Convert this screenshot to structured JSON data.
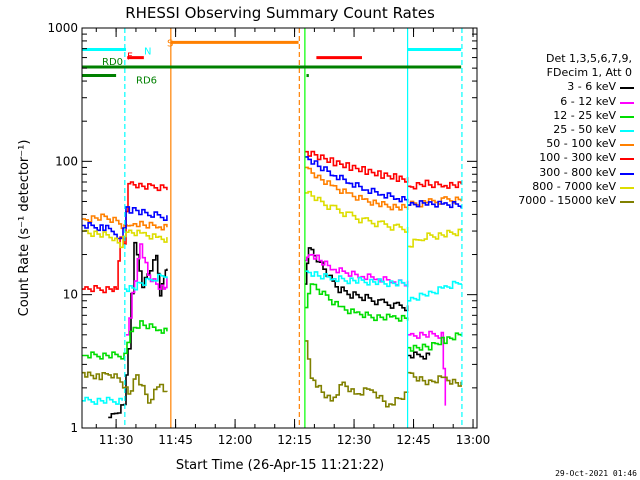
{
  "chart_data": {
    "type": "line",
    "title": "RHESSI Observing Summary Count Rates",
    "xlabel": "Start Time (26-Apr-15 11:21:22)",
    "ylabel": "Count Rate (s⁻¹ detector⁻¹)",
    "yscale": "log",
    "ylim": [
      1,
      1000
    ],
    "xlim_minutes": [
      21.4,
      121.0
    ],
    "xticks": [
      {
        "t": 30,
        "label": "11:30"
      },
      {
        "t": 45,
        "label": "11:45"
      },
      {
        "t": 60,
        "label": "12:00"
      },
      {
        "t": 75,
        "label": "12:15"
      },
      {
        "t": 90,
        "label": "12:30"
      },
      {
        "t": 105,
        "label": "12:45"
      },
      {
        "t": 120,
        "label": "13:00"
      }
    ],
    "yticks": [
      {
        "v": 1,
        "label": "1"
      },
      {
        "v": 10,
        "label": "10"
      },
      {
        "v": 100,
        "label": "100"
      },
      {
        "v": 1000,
        "label": "1000"
      }
    ],
    "legend_placement": "right",
    "legend_header": [
      "Det 1,3,5,6,7,9,",
      "FDecim 1, Att 0"
    ],
    "series": [
      {
        "name": "3 - 6 keV",
        "color": "#000000",
        "segments": [
          [
            [
              28,
              1.2
            ],
            [
              32,
              1.5
            ],
            [
              33,
              4
            ],
            [
              34.5,
              25
            ],
            [
              36.5,
              12
            ],
            [
              38.5,
              16
            ],
            [
              40,
              20
            ],
            [
              41,
              10
            ],
            [
              42,
              14
            ],
            [
              42.8,
              16
            ]
          ],
          [
            [
              77.6,
              12
            ],
            [
              78.5,
              22
            ],
            [
              80.5,
              18
            ],
            [
              83,
              14
            ],
            [
              86,
              11
            ],
            [
              89,
              10
            ],
            [
              92,
              9.6
            ],
            [
              96,
              8.8
            ],
            [
              100,
              8.3
            ],
            [
              103.5,
              8
            ]
          ],
          [
            [
              103.5,
              3.5
            ],
            [
              109,
              3.5
            ]
          ]
        ]
      },
      {
        "name": "6 - 12 keV",
        "color": "#ff00ff",
        "segments": [
          [
            [
              32.5,
              5
            ],
            [
              34,
              10
            ],
            [
              36,
              24
            ],
            [
              38,
              14
            ],
            [
              40,
              12
            ],
            [
              42,
              11
            ],
            [
              42.8,
              13
            ]
          ],
          [
            [
              77.6,
              18
            ],
            [
              78.5,
              21
            ],
            [
              80.5,
              19
            ],
            [
              84,
              16
            ],
            [
              87,
              15
            ],
            [
              91,
              14
            ],
            [
              95,
              13.5
            ],
            [
              99,
              12.8
            ],
            [
              103.5,
              12
            ]
          ],
          [
            [
              103.5,
              5
            ],
            [
              112,
              5
            ],
            [
              113,
              1.5
            ]
          ]
        ]
      },
      {
        "name": "12 - 25 keV",
        "color": "#00dd00",
        "segments": [
          [
            [
              21.4,
              3.5
            ],
            [
              32,
              3.5
            ],
            [
              33.5,
              5.5
            ],
            [
              36,
              6
            ],
            [
              40,
              5.5
            ],
            [
              42.8,
              5.2
            ]
          ],
          [
            [
              77.6,
              8
            ],
            [
              79,
              12
            ],
            [
              82,
              10
            ],
            [
              86,
              8
            ],
            [
              90,
              7.2
            ],
            [
              95,
              6.8
            ],
            [
              99,
              6.7
            ],
            [
              103.5,
              6.5
            ]
          ],
          [
            [
              103.5,
              4
            ],
            [
              108,
              4
            ],
            [
              112,
              4.5
            ],
            [
              117,
              5
            ]
          ]
        ]
      },
      {
        "name": "25 - 50 keV",
        "color": "#00ffff",
        "segments": [
          [
            [
              21.4,
              1.6
            ],
            [
              31.5,
              1.6
            ]
          ],
          [
            [
              32,
              11
            ],
            [
              34,
              11
            ],
            [
              36,
              12
            ],
            [
              39,
              13
            ],
            [
              42.8,
              14
            ]
          ],
          [
            [
              77.6,
              15
            ],
            [
              80,
              14
            ],
            [
              84,
              13.2
            ],
            [
              89,
              12.8
            ],
            [
              94,
              12.5
            ],
            [
              99,
              12.2
            ],
            [
              103.5,
              12
            ]
          ],
          [
            [
              103.5,
              9
            ],
            [
              108,
              10
            ],
            [
              112,
              11
            ],
            [
              117,
              12.5
            ]
          ]
        ]
      },
      {
        "name": "50 - 100 keV",
        "color": "#ff8000",
        "segments": [
          [
            [
              21.4,
              37
            ],
            [
              27,
              38
            ],
            [
              30,
              36
            ],
            [
              32,
              32
            ],
            [
              33.5,
              35
            ],
            [
              36,
              34
            ],
            [
              40,
              33
            ],
            [
              42.8,
              32
            ]
          ],
          [
            [
              77.6,
              90
            ],
            [
              80,
              80
            ],
            [
              84,
              66
            ],
            [
              88,
              58
            ],
            [
              92,
              52
            ],
            [
              97,
              47
            ],
            [
              103.5,
              44
            ]
          ],
          [
            [
              103.5,
              47
            ],
            [
              108,
              49
            ],
            [
              112,
              51
            ],
            [
              117,
              52
            ]
          ]
        ]
      },
      {
        "name": "100 - 300 keV",
        "color": "#ff0000",
        "segments": [
          [
            [
              21.4,
              11
            ],
            [
              29,
              11
            ],
            [
              30,
              11
            ],
            [
              31,
              27
            ],
            [
              32,
              24
            ],
            [
              33,
              68
            ],
            [
              35,
              66
            ],
            [
              38,
              64
            ],
            [
              42.8,
              62
            ]
          ],
          [
            [
              77.6,
              118
            ],
            [
              80,
              112
            ],
            [
              84,
              100
            ],
            [
              88,
              92
            ],
            [
              92,
              86
            ],
            [
              96,
              80
            ],
            [
              100,
              76
            ],
            [
              103.5,
              72
            ]
          ],
          [
            [
              103.5,
              65
            ],
            [
              108,
              68
            ],
            [
              112,
              67
            ],
            [
              117,
              66
            ]
          ]
        ]
      },
      {
        "name": "300 - 800 keV",
        "color": "#0000ff",
        "segments": [
          [
            [
              21.4,
              33
            ],
            [
              26,
              32
            ],
            [
              29.5,
              30
            ],
            [
              31,
              25
            ],
            [
              32.5,
              43
            ],
            [
              35,
              42
            ],
            [
              38,
              40
            ],
            [
              42.8,
              38
            ]
          ],
          [
            [
              77.6,
              108
            ],
            [
              80,
              95
            ],
            [
              84,
              80
            ],
            [
              88,
              70
            ],
            [
              92,
              62
            ],
            [
              96,
              57
            ],
            [
              100,
              53
            ],
            [
              103.5,
              50
            ]
          ],
          [
            [
              103.5,
              47
            ],
            [
              108,
              48
            ],
            [
              112,
              47
            ],
            [
              117,
              47
            ]
          ]
        ]
      },
      {
        "name": "800 - 7000 keV",
        "color": "#dddd00",
        "segments": [
          [
            [
              21.4,
              30
            ],
            [
              29,
              27
            ],
            [
              31,
              24
            ],
            [
              32.5,
              30
            ],
            [
              36,
              29
            ],
            [
              40,
              27
            ],
            [
              42.8,
              26
            ]
          ],
          [
            [
              77.6,
              58
            ],
            [
              80,
              52
            ],
            [
              84,
              45
            ],
            [
              88,
              40
            ],
            [
              92,
              36
            ],
            [
              96,
              34
            ],
            [
              100,
              32
            ],
            [
              103.5,
              31
            ]
          ],
          [
            [
              103.5,
              23
            ],
            [
              107,
              27
            ],
            [
              112,
              28
            ],
            [
              117,
              30
            ]
          ]
        ]
      },
      {
        "name": "7000 - 15000 keV",
        "color": "#808000",
        "segments": [
          [
            [
              21.4,
              2.6
            ],
            [
              25,
              2.4
            ],
            [
              28,
              2.6
            ],
            [
              31,
              2.3
            ],
            [
              33,
              1.8
            ],
            [
              35,
              2.5
            ],
            [
              38,
              1.6
            ],
            [
              41,
              2.2
            ],
            [
              42.8,
              1.8
            ]
          ],
          [
            [
              77.6,
              4.5
            ],
            [
              79,
              2.5
            ],
            [
              81,
              2
            ],
            [
              84,
              1.6
            ],
            [
              87,
              2.2
            ],
            [
              90,
              1.8
            ],
            [
              94,
              2
            ],
            [
              98,
              1.5
            ],
            [
              103.5,
              1.8
            ]
          ],
          [
            [
              103.5,
              2.6
            ],
            [
              108,
              2.2
            ],
            [
              112,
              2.4
            ],
            [
              117,
              2.1
            ]
          ]
        ]
      }
    ],
    "annotations": [
      {
        "label": "N",
        "color": "#00ffff",
        "start": 21.4,
        "end": 32.5,
        "level": 690
      },
      {
        "label": "S",
        "color": "#ff8000",
        "start": 43.8,
        "end": 76.0,
        "level": 780
      },
      {
        "label": "F",
        "color": "#ff0000",
        "start": 32.8,
        "end": 37.0,
        "level": 600
      },
      {
        "label": "",
        "color": "#ff0000",
        "start": 80.5,
        "end": 92.0,
        "level": 600
      },
      {
        "label": "",
        "color": "#00ffff",
        "start": 103.5,
        "end": 117.0,
        "level": 690
      },
      {
        "label": "RD0",
        "color": "#008000",
        "start": 21.4,
        "end": 117.0,
        "level": 510
      },
      {
        "label": "RD6",
        "color": "#008000",
        "start": 21.4,
        "end": 30.0,
        "level": 440
      },
      {
        "label": "",
        "color": "#008000",
        "start": 78.0,
        "end": 78.6,
        "level": 440
      }
    ],
    "vlines": [
      {
        "t": 32.2,
        "color": "#00ffff",
        "dash": true
      },
      {
        "t": 43.8,
        "color": "#ff8000",
        "dash": false
      },
      {
        "t": 76.2,
        "color": "#ff8000",
        "dash": true
      },
      {
        "t": 77.6,
        "color": "#00ff00",
        "dash": false
      },
      {
        "t": 103.5,
        "color": "#00ffff",
        "dash": false
      },
      {
        "t": 117.2,
        "color": "#00ffff",
        "dash": true
      }
    ],
    "grid": false
  },
  "footer_timestamp": "29-Oct-2021 01:46"
}
